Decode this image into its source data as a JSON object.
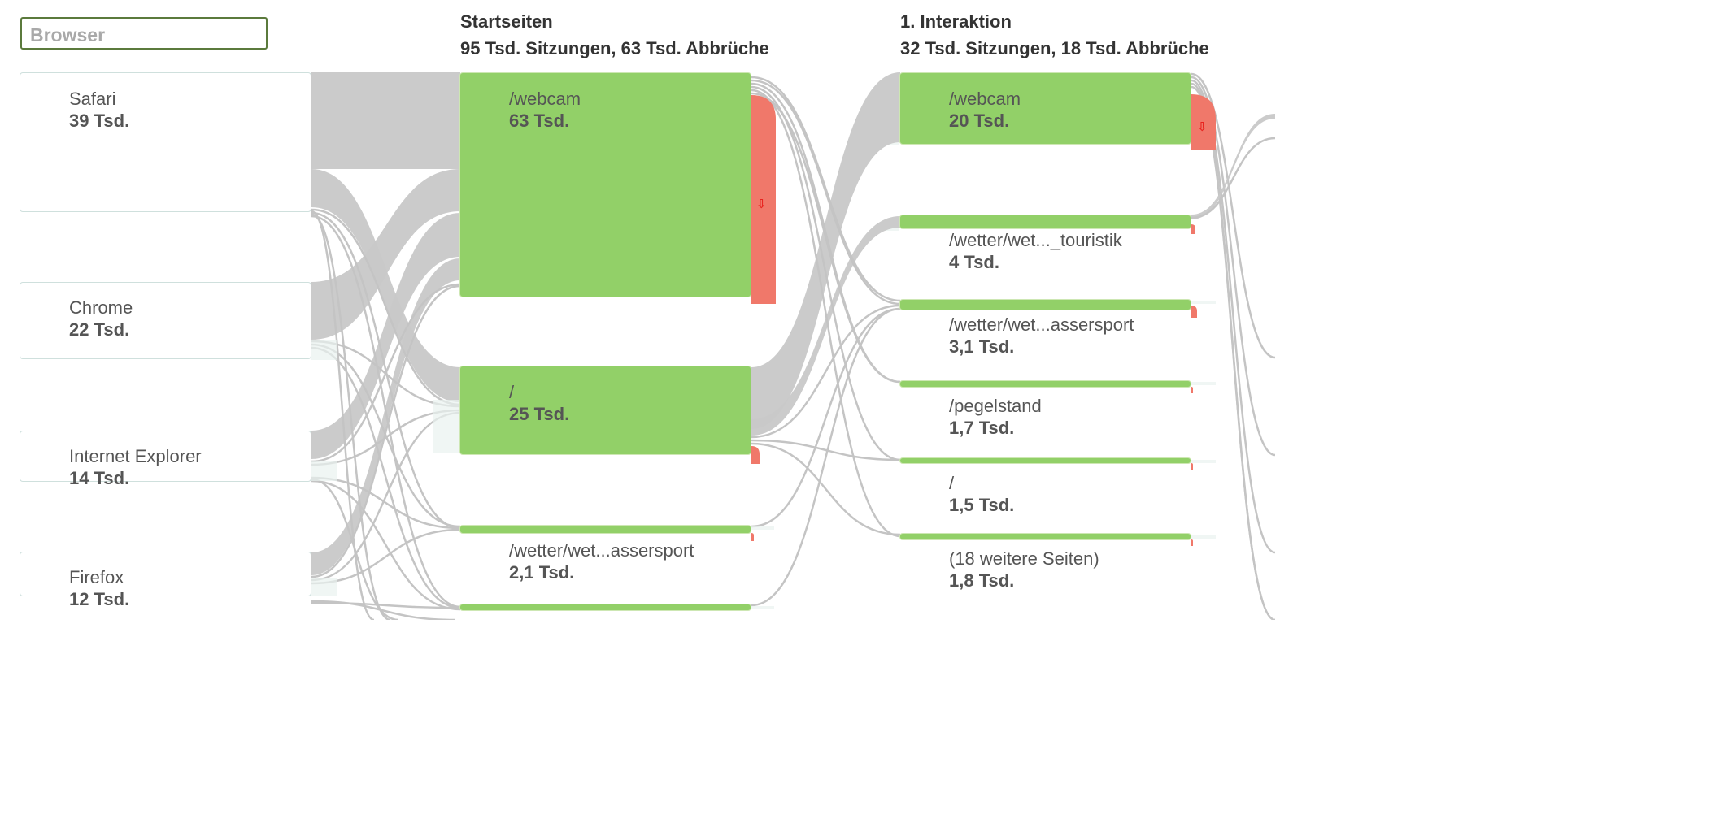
{
  "dimension_selector": {
    "value": "Browser"
  },
  "columns": [
    {
      "title": "Startseiten",
      "summary": "95 Tsd. Sitzungen, 63 Tsd. Abbrüche"
    },
    {
      "title": "1. Interaktion",
      "summary": "32 Tsd. Sitzungen, 18 Tsd. Abbrüche"
    }
  ],
  "browsers": [
    {
      "name": "Safari",
      "value": "39 Tsd."
    },
    {
      "name": "Chrome",
      "value": "22 Tsd."
    },
    {
      "name": "Internet Explorer",
      "value": "14 Tsd."
    },
    {
      "name": "Firefox",
      "value": "12 Tsd."
    }
  ],
  "start_pages": [
    {
      "name": "/webcam",
      "value": "63 Tsd."
    },
    {
      "name": "/",
      "value": "25 Tsd."
    },
    {
      "name": "/wetter/wet...assersport",
      "value": "2,1 Tsd."
    }
  ],
  "interaction1": [
    {
      "name": "/webcam",
      "value": "20 Tsd."
    },
    {
      "name": "/wetter/wet..._touristik",
      "value": "4 Tsd."
    },
    {
      "name": "/wetter/wet...assersport",
      "value": "3,1 Tsd."
    },
    {
      "name": "/pegelstand",
      "value": "1,7 Tsd."
    },
    {
      "name": "/",
      "value": "1,5 Tsd."
    },
    {
      "name": "(18 weitere Seiten)",
      "value": "1,8 Tsd."
    }
  ],
  "colors": {
    "page_node": "#92d068",
    "dropoff": "#f0786a",
    "flow": "#c8c8c8",
    "drop_arrow": "#e8241f"
  },
  "icons": {
    "dropoff": "drop-off-arrow-icon"
  }
}
